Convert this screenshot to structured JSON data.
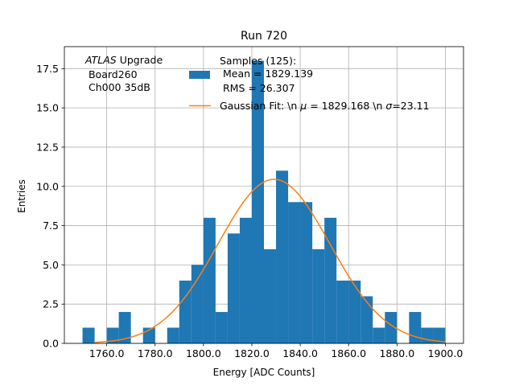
{
  "colors": {
    "bar": "#1f77b4",
    "fit": "#ff7f0e",
    "grid": "#b0b0b0",
    "axis": "#000000"
  },
  "chart_data": {
    "type": "bar",
    "title": "Run 720",
    "xlabel": "Energy [ADC Counts]",
    "ylabel": "Entries",
    "xlim": [
      1742.5,
      1907.5
    ],
    "ylim": [
      0,
      18.9
    ],
    "grid": true,
    "legend_position": "top-right",
    "annotation": {
      "italic": "ATLAS",
      "rest": " Upgrade",
      "line2": " Board260",
      "line3": " Ch000 35dB"
    },
    "x_ticks": [
      1760,
      1780,
      1800,
      1820,
      1840,
      1860,
      1880,
      1900
    ],
    "x_tick_labels": [
      "1760.0",
      "1780.0",
      "1800.0",
      "1820.0",
      "1840.0",
      "1860.0",
      "1880.0",
      "1900.0"
    ],
    "y_ticks": [
      0,
      2.5,
      5,
      7.5,
      10,
      12.5,
      15,
      17.5
    ],
    "y_tick_labels": [
      "0.0",
      "2.5",
      "5.0",
      "7.5",
      "10.0",
      "12.5",
      "15.0",
      "17.5"
    ],
    "bin_width": 5,
    "bin_edges": [
      1750,
      1755,
      1760,
      1765,
      1770,
      1775,
      1780,
      1785,
      1790,
      1795,
      1800,
      1805,
      1810,
      1815,
      1820,
      1825,
      1830,
      1835,
      1840,
      1845,
      1850,
      1855,
      1860,
      1865,
      1870,
      1875,
      1880,
      1885,
      1890,
      1895,
      1900
    ],
    "counts": [
      1,
      0,
      1,
      2,
      0,
      1,
      0,
      1,
      4,
      5,
      8,
      2,
      7,
      8,
      18,
      6,
      11,
      9,
      9,
      6,
      8,
      4,
      4,
      3,
      1,
      2,
      0,
      2,
      1,
      1
    ],
    "series": [
      {
        "name": "Samples (125):\n Mean = 1829.139\n RMS = 26.307",
        "kind": "histogram"
      },
      {
        "name": "Gaussian Fit: \\n $\\mu$ = 1829.168 \\n $\\sigma$=23.11",
        "kind": "line",
        "mu": 1829.168,
        "sigma": 23.11,
        "amplitude": 10.45,
        "x_range": [
          1755,
          1900
        ]
      }
    ],
    "legend": {
      "hist_lines": [
        "Samples (125):",
        " Mean = 1829.139",
        " RMS = 26.307"
      ],
      "fit_label_prefix": "Gaussian Fit: \\n ",
      "fit_mu_symbol": "μ",
      "fit_label_mid": " = 1829.168 \\n ",
      "fit_sigma_symbol": "σ",
      "fit_label_suffix": "=23.11"
    }
  }
}
